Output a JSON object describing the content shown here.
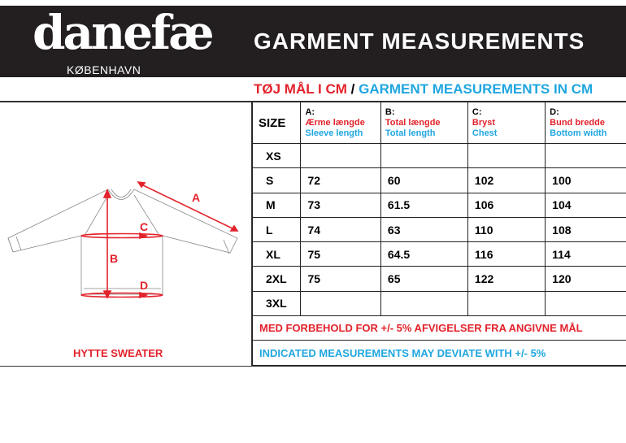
{
  "header": {
    "brand": "danefæ",
    "city": "KØBENHAVN",
    "title": "GARMENT MEASUREMENTS"
  },
  "subtitle": {
    "danish": "TØJ MÅL I CM",
    "separator": " / ",
    "english": "GARMENT MEASUREMENTS IN CM"
  },
  "table": {
    "size_header": "SIZE",
    "columns": [
      {
        "letter": "A:",
        "danish": "Ærme længde",
        "english": "Sleeve length"
      },
      {
        "letter": "B:",
        "danish": "Total længde",
        "english": "Total length"
      },
      {
        "letter": "C:",
        "danish": "Bryst",
        "english": "Chest"
      },
      {
        "letter": "D:",
        "danish": "Bund bredde",
        "english": "Bottom width"
      }
    ],
    "rows": [
      {
        "size": "XS",
        "values": [
          "",
          "",
          "",
          ""
        ]
      },
      {
        "size": "S",
        "values": [
          "72",
          "60",
          "102",
          "100"
        ]
      },
      {
        "size": "M",
        "values": [
          "73",
          "61.5",
          "106",
          "104"
        ]
      },
      {
        "size": "L",
        "values": [
          "74",
          "63",
          "110",
          "108"
        ]
      },
      {
        "size": "XL",
        "values": [
          "75",
          "64.5",
          "116",
          "114"
        ]
      },
      {
        "size": "2XL",
        "values": [
          "75",
          "65",
          "122",
          "120"
        ]
      },
      {
        "size": "3XL",
        "values": [
          "",
          "",
          "",
          ""
        ]
      }
    ],
    "note_danish": "MED FORBEHOLD FOR +/- 5% AFVIGELSER FRA ANGIVNE MÅL",
    "note_english": "INDICATED MEASUREMENTS MAY DEVIATE WITH +/- 5%"
  },
  "diagram": {
    "labels": [
      "A",
      "B",
      "C",
      "D"
    ],
    "accent": "#e3222b"
  },
  "product_name": "HYTTE SWEATER"
}
